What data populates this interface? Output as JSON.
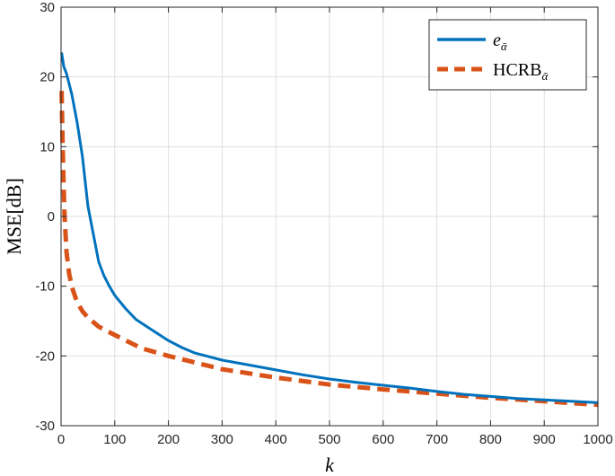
{
  "chart_data": {
    "type": "line",
    "xlabel": "k",
    "ylabel": "MSE[dB]",
    "xlim": [
      0,
      1000
    ],
    "ylim": [
      -30,
      30
    ],
    "xticks": [
      0,
      100,
      200,
      300,
      400,
      500,
      600,
      700,
      800,
      900,
      1000
    ],
    "yticks": [
      -30,
      -20,
      -10,
      0,
      10,
      20,
      30
    ],
    "grid": true,
    "legend_position": "top-right",
    "series": [
      {
        "name": "e",
        "name_subscript": "ᾱ",
        "style": "solid",
        "color": "#0072BD",
        "x": [
          1,
          5,
          10,
          20,
          30,
          40,
          50,
          60,
          70,
          80,
          90,
          100,
          120,
          140,
          160,
          180,
          200,
          225,
          250,
          275,
          300,
          350,
          400,
          450,
          500,
          550,
          600,
          650,
          700,
          750,
          800,
          850,
          900,
          950,
          1000
        ],
        "y": [
          23.5,
          21.5,
          20.5,
          17.5,
          13.5,
          8.5,
          1.5,
          -2.5,
          -6.5,
          -8.5,
          -10,
          -11.3,
          -13.2,
          -14.8,
          -15.8,
          -16.8,
          -17.8,
          -18.8,
          -19.6,
          -20.1,
          -20.6,
          -21.3,
          -22,
          -22.7,
          -23.3,
          -23.8,
          -24.2,
          -24.6,
          -25.1,
          -25.5,
          -25.8,
          -26.1,
          -26.3,
          -26.5,
          -26.7
        ]
      },
      {
        "name": "HCRB",
        "name_subscript": "ᾱ",
        "style": "dashed",
        "color": "#D95319",
        "x": [
          1,
          3,
          6,
          10,
          15,
          20,
          30,
          40,
          50,
          70,
          100,
          150,
          200,
          300,
          400,
          500,
          600,
          700,
          800,
          900,
          1000
        ],
        "y": [
          18,
          10,
          1,
          -5,
          -8.2,
          -10.1,
          -12.3,
          -13.6,
          -14.5,
          -15.8,
          -17,
          -18.9,
          -20,
          -21.9,
          -23.1,
          -24.1,
          -24.8,
          -25.4,
          -26,
          -26.5,
          -27
        ]
      }
    ]
  }
}
